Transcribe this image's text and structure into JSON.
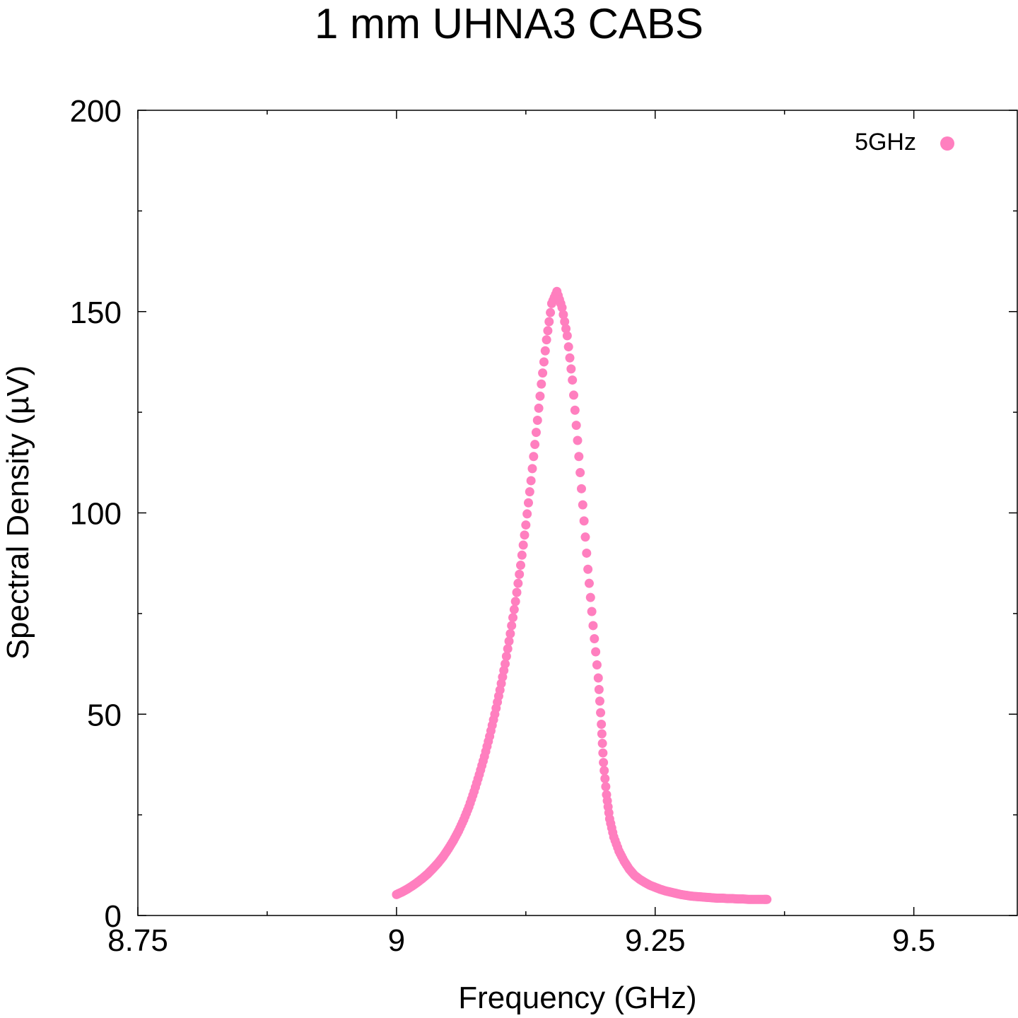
{
  "chart_data": {
    "type": "scatter",
    "title": "1 mm UHNA3 CABS",
    "xlabel": "Frequency (GHz)",
    "ylabel": "Spectral Density (µV)",
    "xlim": [
      8.75,
      9.6
    ],
    "ylim": [
      0,
      200
    ],
    "x_ticks": [
      "8.75",
      "9",
      "9.25",
      "9.5"
    ],
    "x_tick_values": [
      8.75,
      9.0,
      9.25,
      9.5
    ],
    "x_minor_ticks": [
      8.875,
      9.125,
      9.375
    ],
    "y_ticks": [
      "0",
      "50",
      "100",
      "150",
      "200"
    ],
    "y_tick_values": [
      0,
      50,
      100,
      150,
      200
    ],
    "y_minor_ticks": [
      25,
      75,
      125,
      175
    ],
    "grid": false,
    "legend_position": "top-right",
    "series": [
      {
        "name": "5GHz",
        "color": "#ff7fbf",
        "x": [
          9.0,
          9.005,
          9.01,
          9.015,
          9.02,
          9.025,
          9.03,
          9.035,
          9.04,
          9.045,
          9.05,
          9.055,
          9.06,
          9.065,
          9.07,
          9.075,
          9.08,
          9.085,
          9.09,
          9.095,
          9.1,
          9.105,
          9.11,
          9.115,
          9.12,
          9.125,
          9.13,
          9.135,
          9.14,
          9.145,
          9.15,
          9.155,
          9.16,
          9.165,
          9.17,
          9.175,
          9.18,
          9.185,
          9.19,
          9.195,
          9.198,
          9.2,
          9.203,
          9.206,
          9.21,
          9.215,
          9.22,
          9.225,
          9.23,
          9.235,
          9.24,
          9.245,
          9.25,
          9.255,
          9.26,
          9.265,
          9.27,
          9.275,
          9.28,
          9.285,
          9.29,
          9.295,
          9.3,
          9.305,
          9.31,
          9.315,
          9.32,
          9.325,
          9.33,
          9.335,
          9.34,
          9.345,
          9.35,
          9.355,
          9.358
        ],
        "values": [
          5.2,
          5.8,
          6.5,
          7.3,
          8.2,
          9.2,
          10.3,
          11.6,
          13.0,
          14.6,
          16.5,
          18.6,
          21.0,
          23.8,
          27.0,
          30.8,
          35.0,
          39.5,
          44.5,
          50.0,
          56.0,
          62.5,
          70.0,
          78.0,
          87.0,
          97.0,
          108.0,
          120.0,
          132.0,
          143.0,
          152.0,
          155.0,
          151.0,
          144.0,
          133.0,
          118.0,
          102.0,
          86.0,
          72.0,
          59.0,
          47.5,
          38.0,
          30.0,
          24.0,
          19.5,
          16.0,
          13.5,
          11.5,
          10.0,
          9.0,
          8.2,
          7.5,
          7.0,
          6.5,
          6.1,
          5.8,
          5.5,
          5.2,
          5.0,
          4.8,
          4.7,
          4.6,
          4.5,
          4.4,
          4.3,
          4.3,
          4.2,
          4.2,
          4.1,
          4.1,
          4.0,
          4.0,
          4.0,
          4.0,
          4.0
        ]
      }
    ]
  }
}
